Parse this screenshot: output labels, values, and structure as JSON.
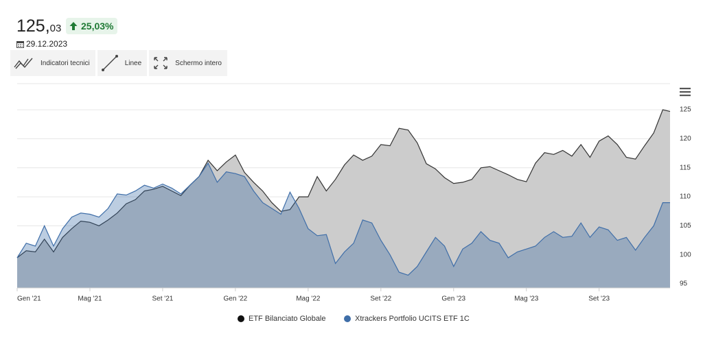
{
  "header": {
    "price_int": "125,",
    "price_dec": "03",
    "change": "25,03%",
    "date": "29.12.2023"
  },
  "toolbar": [
    "Indicatori tecnici",
    "Linee",
    "Schermo intero"
  ],
  "chart_data": {
    "type": "area",
    "x": [
      0,
      0.5,
      1,
      1.5,
      2,
      2.5,
      3,
      3.5,
      4,
      4.5,
      5,
      5.5,
      6,
      6.5,
      7,
      7.5,
      8,
      8.5,
      9,
      9.5,
      10,
      10.5,
      11,
      11.5,
      12,
      12.5,
      13,
      13.5,
      14,
      14.5,
      15,
      15.5,
      16,
      16.5,
      17,
      17.5,
      18,
      18.5,
      19,
      19.5,
      20,
      20.5,
      21,
      21.5,
      22,
      22.5,
      23,
      23.5,
      24,
      24.5,
      25,
      25.5,
      26,
      26.5,
      27,
      27.5,
      28,
      28.5,
      29,
      29.5,
      30,
      30.5,
      31,
      31.5,
      32,
      32.5,
      33,
      33.5,
      34,
      34.5,
      35,
      35.5,
      35.9
    ],
    "series": [
      {
        "name": "ETF Bilanciato Globale",
        "color": "#333333",
        "fill": "#cccccc",
        "values": [
          99.5,
          100.7,
          100.5,
          102.7,
          100.5,
          103.0,
          104.5,
          105.8,
          105.6,
          105.0,
          106.0,
          107.2,
          108.8,
          109.5,
          111.0,
          111.3,
          111.8,
          111.0,
          110.2,
          112.0,
          113.5,
          116.3,
          114.5,
          116.0,
          117.2,
          114.2,
          112.5,
          111.0,
          109.0,
          107.5,
          107.8,
          110.0,
          110.0,
          113.5,
          111.0,
          113.0,
          115.5,
          117.2,
          116.3,
          117.0,
          119.0,
          118.8,
          121.8,
          121.5,
          119.3,
          115.7,
          114.8,
          113.3,
          112.3,
          112.5,
          113.0,
          115.0,
          115.2,
          114.5,
          113.8,
          113.0,
          112.6,
          115.8,
          117.6,
          117.3,
          118.0,
          117.0,
          119.0,
          116.8,
          119.6,
          120.5,
          119.0,
          116.8,
          116.5,
          118.8,
          121.0,
          125.0,
          124.7
        ]
      },
      {
        "name": "Xtrackers Portfolio UCITS ETF 1C",
        "color": "#3f6ea8",
        "fill": "#2f62a3",
        "values": [
          99.5,
          102.0,
          101.5,
          105.0,
          101.5,
          104.5,
          106.5,
          107.2,
          107.0,
          106.5,
          108.0,
          110.5,
          110.3,
          111.0,
          112.0,
          111.5,
          112.2,
          111.5,
          110.5,
          112.0,
          113.5,
          115.8,
          112.5,
          114.3,
          114.0,
          113.5,
          111.0,
          109.0,
          108.0,
          107.0,
          110.8,
          108.0,
          104.5,
          103.3,
          103.5,
          98.5,
          100.5,
          102.0,
          106.0,
          105.5,
          102.5,
          100.0,
          97.0,
          96.5,
          98.0,
          100.5,
          103.0,
          101.5,
          98.0,
          101.0,
          102.0,
          104.0,
          102.5,
          102.0,
          99.5,
          100.5,
          101.0,
          101.5,
          103.0,
          104.0,
          103.0,
          103.2,
          105.5,
          103.0,
          104.8,
          104.3,
          102.5,
          103.0,
          100.8,
          103.0,
          105.0,
          109.0,
          109.0
        ]
      }
    ],
    "xlim": [
      0,
      35.9
    ],
    "xticks": [
      {
        "value": 0,
        "label": "Gen '21"
      },
      {
        "value": 4,
        "label": "Mag '21"
      },
      {
        "value": 8,
        "label": "Set '21"
      },
      {
        "value": 12,
        "label": "Gen '22"
      },
      {
        "value": 16,
        "label": "Mag '22"
      },
      {
        "value": 20,
        "label": "Set '22"
      },
      {
        "value": 24,
        "label": "Gen '23"
      },
      {
        "value": 28,
        "label": "Mag '23"
      },
      {
        "value": 32,
        "label": "Set '23"
      }
    ],
    "ylim": [
      94.3,
      129.5
    ],
    "yticks": [
      95,
      100,
      105,
      110,
      115,
      120,
      125
    ],
    "grid": true,
    "legend": "bottom"
  }
}
